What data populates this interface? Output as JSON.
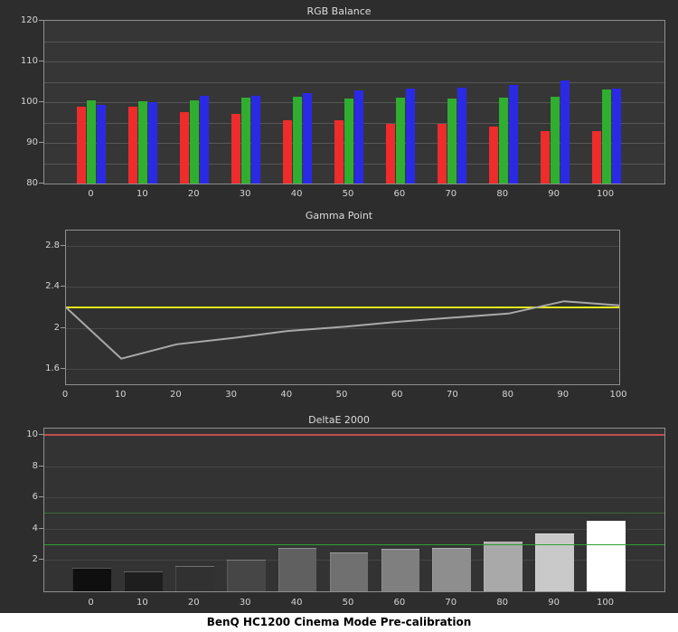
{
  "caption": "BenQ HC1200 Cinema Mode Pre-calibration",
  "colors": {
    "background": "#2d2d2d",
    "plot_border": "#8f8f8f",
    "grid": "#565656",
    "axis_text": "#d4d4d4",
    "title_text": "#dcdcdc",
    "red_bar": "#ee2c2c",
    "green_bar": "#2fae2f",
    "blue_bar": "#2a2ae6",
    "gamma_line": "#a9a9a9",
    "gamma_target": "#e8e81a"
  },
  "chart_data": [
    {
      "type": "bar",
      "title": "RGB Balance",
      "categories": [
        0,
        10,
        20,
        30,
        40,
        50,
        60,
        70,
        80,
        90,
        100
      ],
      "series": [
        {
          "name": "Red",
          "values": [
            99,
            98.8,
            97.5,
            97.2,
            95.6,
            95.5,
            94.6,
            94.7,
            94,
            93,
            93
          ]
        },
        {
          "name": "Green",
          "values": [
            100.4,
            100.3,
            100.5,
            101.2,
            101.4,
            101,
            101.2,
            101,
            101.1,
            101.4,
            103.2
          ]
        },
        {
          "name": "Blue",
          "values": [
            99.4,
            100.1,
            101.6,
            101.5,
            102.3,
            102.9,
            103.4,
            103.5,
            104.3,
            105.3,
            103.3
          ]
        }
      ],
      "ylim": [
        80,
        120
      ],
      "yticks": [
        80,
        90,
        100,
        110,
        120
      ],
      "grid": true,
      "legend": "none"
    },
    {
      "type": "line",
      "title": "Gamma Point",
      "x": [
        0,
        10,
        20,
        30,
        40,
        50,
        60,
        70,
        80,
        90,
        100
      ],
      "series": [
        {
          "name": "Measured gamma",
          "values": [
            2.2,
            1.7,
            1.84,
            1.9,
            1.97,
            2.01,
            2.06,
            2.1,
            2.14,
            2.26,
            2.22
          ]
        }
      ],
      "target": 2.2,
      "ylim": [
        1.45,
        2.95
      ],
      "yticks": [
        1.6,
        2,
        2.4,
        2.8
      ],
      "grid": true,
      "legend": "none"
    },
    {
      "type": "bar",
      "title": "DeltaE 2000",
      "categories": [
        0,
        10,
        20,
        30,
        40,
        50,
        60,
        70,
        80,
        90,
        100
      ],
      "values": [
        1.5,
        1.3,
        1.6,
        2,
        2.8,
        2.5,
        2.7,
        2.8,
        3.2,
        3.7,
        4.5
      ],
      "bar_colors": [
        "#0f0f0f",
        "#1e1e1e",
        "#313131",
        "#464646",
        "#606060",
        "#707070",
        "#7f7f7f",
        "#8e8e8e",
        "#a9a9a9",
        "#c9c9c9",
        "#ffffff"
      ],
      "reference_lines": [
        {
          "value": 10,
          "color": "#c0504d",
          "width": 2
        },
        {
          "value": 5,
          "color": "#3c6b3c",
          "width": 1
        },
        {
          "value": 3,
          "color": "#2fa02f",
          "width": 1
        }
      ],
      "ylim": [
        0,
        10.4
      ],
      "yticks": [
        2,
        4,
        6,
        8,
        10
      ],
      "grid": true,
      "legend": "none"
    }
  ]
}
